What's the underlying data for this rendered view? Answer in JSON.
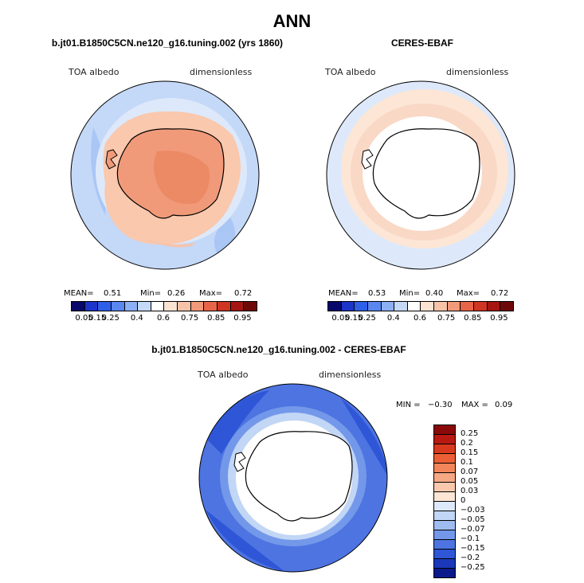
{
  "title": "ANN",
  "colors": {
    "abs_scale": [
      "#08086b",
      "#1d34c8",
      "#2f5fe8",
      "#5a86ef",
      "#8cb0f3",
      "#c4d8f8",
      "#ffffff",
      "#fbe3d3",
      "#f7c3a8",
      "#f19a7a",
      "#e86448",
      "#d03523",
      "#a61512",
      "#6e0808"
    ],
    "diff_scale": [
      "#8a0a0a",
      "#b81a12",
      "#d93a1e",
      "#ec5f35",
      "#f3855a",
      "#f6a885",
      "#f9c8ad",
      "#fde6d5",
      "#dde9fa",
      "#c2d6f6",
      "#9fbcf1",
      "#7398ea",
      "#4d74e1",
      "#2f56d6",
      "#1a38b9",
      "#0a1a8a"
    ]
  },
  "panels": {
    "model": {
      "title": "b.jt01.B1850C5CN.ne120_g16.tuning.002 (yrs 1860)",
      "variable": "TOA albedo",
      "units": "dimensionless",
      "mean_label": "MEAN=",
      "mean": "0.51",
      "min_label": "Min=",
      "min": "0.26",
      "max_label": "Max=",
      "max": "0.72"
    },
    "obs": {
      "title": "CERES-EBAF",
      "variable": "TOA albedo",
      "units": "dimensionless",
      "mean_label": "MEAN=",
      "mean": "0.53",
      "min_label": "Min=",
      "min": "0.40",
      "max_label": "Max=",
      "max": "0.72"
    },
    "diff": {
      "title": "b.jt01.B1850C5CN.ne120_g16.tuning.002 - CERES-EBAF",
      "variable": "TOA albedo",
      "units": "dimensionless",
      "min_label": "MIN =",
      "min": "−0.30",
      "max_label": "MAX =",
      "max": "0.09"
    }
  },
  "abs_colorbar_ticks": [
    "0.05",
    "0.15",
    "0.25",
    "0.4",
    "0.6",
    "0.75",
    "0.85",
    "0.95"
  ],
  "diff_colorbar_ticks": [
    "0.25",
    "0.2",
    "0.15",
    "0.1",
    "0.07",
    "0.05",
    "0.03",
    "0",
    "−0.03",
    "−0.05",
    "−0.07",
    "−0.1",
    "−0.15",
    "−0.2",
    "−0.25"
  ]
}
